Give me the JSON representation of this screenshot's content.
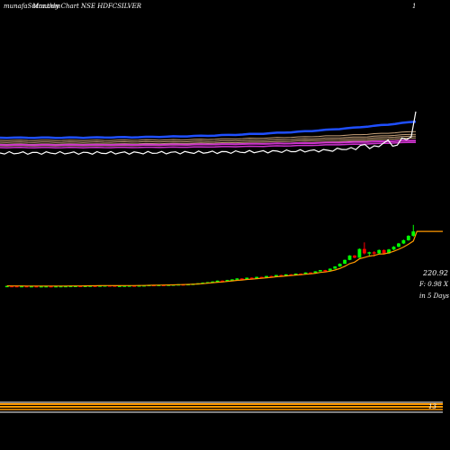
{
  "header": {
    "title": "Monthly Chart NSE HDFCSILVER",
    "watermark": "munafaSutra.com",
    "right_marker": "1"
  },
  "price_labels": {
    "price": "220.92",
    "change": "F: 0.98 X",
    "period": "in 5 Days"
  },
  "volume_marker": "13",
  "colors": {
    "up": "#00ff00",
    "down": "#ff0000",
    "ema_main": "#ff9900",
    "band_blue": "#1f4fff",
    "band_magenta": "#cc33cc",
    "white_line": "#ffffff",
    "band_tan": "#c8a27a"
  },
  "chart_data": {
    "type": "candlestick",
    "series": [
      {
        "name": "candles",
        "ohlc": [
          [
            0.4,
            0.6,
            0.3,
            0.5
          ],
          [
            0.5,
            0.4,
            0.2,
            0.6
          ],
          [
            0.4,
            0.3,
            0.1,
            0.5
          ],
          [
            0.3,
            0.4,
            0.1,
            0.5
          ],
          [
            0.4,
            0.2,
            0.0,
            0.5
          ],
          [
            0.2,
            0.3,
            0.1,
            0.4
          ],
          [
            0.3,
            0.1,
            0.0,
            0.4
          ],
          [
            0.1,
            0.2,
            0.0,
            0.3
          ],
          [
            0.2,
            0.3,
            0.1,
            0.4
          ],
          [
            0.3,
            0.2,
            0.1,
            0.4
          ],
          [
            0.2,
            0.3,
            0.1,
            0.4
          ],
          [
            0.3,
            0.4,
            0.2,
            0.5
          ],
          [
            0.4,
            0.5,
            0.3,
            0.6
          ],
          [
            0.5,
            0.7,
            0.4,
            0.8
          ],
          [
            0.7,
            0.8,
            0.6,
            0.9
          ],
          [
            0.8,
            0.7,
            0.6,
            0.9
          ],
          [
            0.7,
            0.9,
            0.6,
            1.0
          ],
          [
            0.9,
            1.1,
            0.8,
            1.2
          ],
          [
            1.1,
            1.0,
            0.9,
            1.2
          ],
          [
            1.0,
            1.3,
            0.9,
            1.4
          ],
          [
            1.3,
            1.6,
            1.2,
            1.7
          ],
          [
            1.6,
            1.4,
            1.3,
            1.7
          ],
          [
            1.4,
            0.7,
            0.6,
            1.5
          ],
          [
            0.7,
            1.0,
            0.6,
            1.1
          ],
          [
            1.0,
            1.2,
            0.9,
            1.3
          ],
          [
            1.2,
            1.4,
            1.1,
            1.5
          ],
          [
            1.4,
            1.1,
            1.0,
            1.5
          ],
          [
            1.1,
            1.6,
            1.0,
            1.7
          ],
          [
            1.6,
            1.8,
            1.5,
            1.9
          ],
          [
            1.8,
            2.4,
            1.7,
            2.5
          ],
          [
            2.4,
            2.2,
            2.1,
            2.6
          ],
          [
            2.2,
            2.6,
            2.1,
            2.7
          ],
          [
            2.6,
            2.5,
            2.4,
            2.8
          ],
          [
            2.5,
            2.9,
            2.4,
            3.0
          ],
          [
            2.9,
            3.2,
            2.8,
            3.3
          ],
          [
            3.2,
            3.6,
            3.1,
            3.7
          ],
          [
            3.6,
            3.5,
            3.4,
            3.8
          ],
          [
            3.5,
            4.0,
            3.4,
            4.1
          ],
          [
            4.0,
            4.6,
            3.9,
            4.7
          ],
          [
            4.6,
            5.4,
            4.5,
            5.6
          ],
          [
            5.4,
            6.6,
            5.3,
            6.8
          ],
          [
            6.6,
            7.4,
            6.4,
            7.6
          ],
          [
            7.4,
            8.6,
            7.2,
            8.8
          ],
          [
            8.6,
            10.2,
            8.4,
            10.4
          ],
          [
            10.2,
            9.6,
            9.4,
            10.6
          ],
          [
            9.6,
            11.4,
            9.5,
            11.6
          ],
          [
            11.4,
            12.4,
            11.2,
            12.8
          ],
          [
            12.4,
            14.2,
            12.2,
            14.5
          ],
          [
            14.2,
            13.0,
            12.8,
            14.4
          ],
          [
            13.0,
            15.6,
            12.9,
            15.8
          ],
          [
            15.6,
            14.0,
            13.8,
            16.0
          ],
          [
            14.0,
            17.0,
            13.9,
            17.4
          ],
          [
            17.0,
            16.0,
            15.4,
            17.2
          ],
          [
            16.0,
            18.6,
            15.8,
            18.8
          ],
          [
            18.6,
            18.2,
            17.9,
            19.0
          ],
          [
            18.2,
            20.4,
            18.0,
            20.6
          ],
          [
            20.4,
            19.8,
            19.6,
            20.8
          ],
          [
            19.8,
            21.6,
            19.6,
            21.8
          ],
          [
            21.6,
            21.2,
            21.0,
            22.0
          ],
          [
            21.2,
            23.0,
            21.0,
            23.2
          ],
          [
            23.0,
            22.6,
            22.4,
            23.4
          ],
          [
            22.6,
            25.0,
            22.5,
            25.2
          ],
          [
            25.0,
            24.4,
            24.2,
            25.4
          ],
          [
            24.4,
            27.2,
            24.3,
            27.4
          ],
          [
            27.2,
            29.4,
            27.0,
            29.6
          ],
          [
            29.4,
            28.4,
            28.2,
            29.8
          ],
          [
            28.4,
            32.0,
            28.3,
            32.4
          ],
          [
            32.0,
            36.0,
            31.8,
            36.4
          ],
          [
            36.0,
            41.0,
            35.6,
            41.6
          ],
          [
            41.0,
            48.0,
            40.6,
            48.6
          ],
          [
            48.0,
            56.0,
            47.4,
            56.6
          ],
          [
            56.0,
            52.0,
            51.0,
            56.8
          ],
          [
            52.0,
            68.0,
            51.6,
            68.8
          ],
          [
            68.0,
            60.0,
            58.0,
            80.0
          ],
          [
            60.0,
            62.0,
            55.0,
            63.0
          ],
          [
            62.0,
            60.0,
            54.0,
            64.0
          ],
          [
            60.0,
            66.0,
            59.0,
            67.0
          ],
          [
            66.0,
            60.0,
            58.0,
            67.0
          ],
          [
            60.0,
            67.0,
            59.0,
            68.0
          ],
          [
            67.0,
            72.0,
            66.0,
            73.0
          ],
          [
            72.0,
            78.0,
            71.0,
            79.0
          ],
          [
            78.0,
            84.0,
            77.0,
            85.0
          ],
          [
            84.0,
            92.0,
            83.0,
            93.0
          ],
          [
            92.0,
            100.0,
            90.0,
            112.0
          ]
        ]
      }
    ],
    "ylim": [
      0,
      115
    ]
  }
}
